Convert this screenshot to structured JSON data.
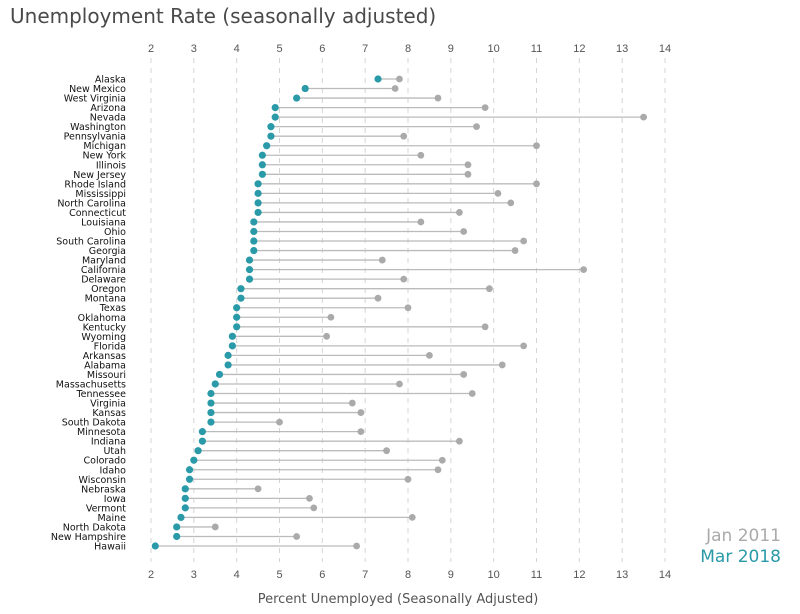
{
  "chart_data": {
    "type": "dumbbell",
    "title": "Unemployment Rate (seasonally adjusted)",
    "xlabel": "Percent Unemployed (Seasonally Adjusted)",
    "ylabel": "",
    "xlim": [
      2,
      14
    ],
    "x_ticks": [
      "2",
      "3",
      "4",
      "5",
      "6",
      "7",
      "8",
      "9",
      "10",
      "11",
      "12",
      "13",
      "14"
    ],
    "grid": "vertical dashed",
    "legend": {
      "placement": "bottom-right",
      "entries": [
        {
          "label": "Jan 2011",
          "color": "#aaaaaa"
        },
        {
          "label": "Mar 2018",
          "color": "#2a9aa8"
        }
      ]
    },
    "series": [
      {
        "name": "Jan 2011",
        "color": "#aaaaaa"
      },
      {
        "name": "Mar 2018",
        "color": "#2a9aa8"
      }
    ],
    "categories": [
      "Alaska",
      "New Mexico",
      "West Virginia",
      "Arizona",
      "Nevada",
      "Washington",
      "Pennsylvania",
      "Michigan",
      "New York",
      "Illinois",
      "New Jersey",
      "Rhode Island",
      "Mississippi",
      "North Carolina",
      "Connecticut",
      "Louisiana",
      "Ohio",
      "South Carolina",
      "Georgia",
      "Maryland",
      "California",
      "Delaware",
      "Oregon",
      "Montana",
      "Texas",
      "Oklahoma",
      "Kentucky",
      "Wyoming",
      "Florida",
      "Arkansas",
      "Alabama",
      "Missouri",
      "Massachusetts",
      "Tennessee",
      "Virginia",
      "Kansas",
      "South Dakota",
      "Minnesota",
      "Indiana",
      "Utah",
      "Colorado",
      "Idaho",
      "Wisconsin",
      "Nebraska",
      "Iowa",
      "Vermont",
      "Maine",
      "North Dakota",
      "New Hampshire",
      "Hawaii"
    ],
    "jan_2011": [
      7.8,
      7.7,
      8.7,
      9.8,
      13.5,
      9.6,
      7.9,
      11.0,
      8.3,
      9.4,
      9.4,
      11.0,
      10.1,
      10.4,
      9.2,
      8.3,
      9.3,
      10.7,
      10.5,
      7.4,
      12.1,
      7.9,
      9.9,
      7.3,
      8.0,
      6.2,
      9.8,
      6.1,
      10.7,
      8.5,
      10.2,
      9.3,
      7.8,
      9.5,
      6.7,
      6.9,
      5.0,
      6.9,
      9.2,
      7.5,
      8.8,
      8.7,
      8.0,
      4.5,
      5.7,
      5.8,
      8.1,
      3.5,
      5.4,
      6.8
    ],
    "mar_2018": [
      7.3,
      5.6,
      5.4,
      4.9,
      4.9,
      4.8,
      4.8,
      4.7,
      4.6,
      4.6,
      4.6,
      4.5,
      4.5,
      4.5,
      4.5,
      4.4,
      4.4,
      4.4,
      4.4,
      4.3,
      4.3,
      4.3,
      4.1,
      4.1,
      4.0,
      4.0,
      4.0,
      3.9,
      3.9,
      3.8,
      3.8,
      3.6,
      3.5,
      3.4,
      3.4,
      3.4,
      3.4,
      3.2,
      3.2,
      3.1,
      3.0,
      2.9,
      2.9,
      2.8,
      2.8,
      2.8,
      2.7,
      2.6,
      2.6,
      2.1
    ]
  }
}
